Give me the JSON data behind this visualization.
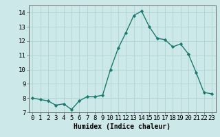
{
  "x": [
    0,
    1,
    2,
    3,
    4,
    5,
    6,
    7,
    8,
    9,
    10,
    11,
    12,
    13,
    14,
    15,
    16,
    17,
    18,
    19,
    20,
    21,
    22,
    23
  ],
  "y": [
    8.0,
    7.9,
    7.8,
    7.5,
    7.6,
    7.2,
    7.8,
    8.1,
    8.1,
    8.2,
    10.0,
    11.5,
    12.6,
    13.8,
    14.1,
    13.0,
    12.2,
    12.1,
    11.6,
    11.8,
    11.1,
    9.8,
    8.4,
    8.3
  ],
  "xlabel": "Humidex (Indice chaleur)",
  "xlim": [
    -0.5,
    23.5
  ],
  "ylim": [
    7,
    14.5
  ],
  "yticks": [
    7,
    8,
    9,
    10,
    11,
    12,
    13,
    14
  ],
  "xticks": [
    0,
    1,
    2,
    3,
    4,
    5,
    6,
    7,
    8,
    9,
    10,
    11,
    12,
    13,
    14,
    15,
    16,
    17,
    18,
    19,
    20,
    21,
    22,
    23
  ],
  "line_color": "#1a7a6e",
  "marker": "D",
  "marker_size": 2.2,
  "bg_color": "#cde8e8",
  "grid_color": "#afd4d4",
  "xlabel_fontsize": 7,
  "tick_fontsize": 6.5,
  "linewidth": 1.0
}
